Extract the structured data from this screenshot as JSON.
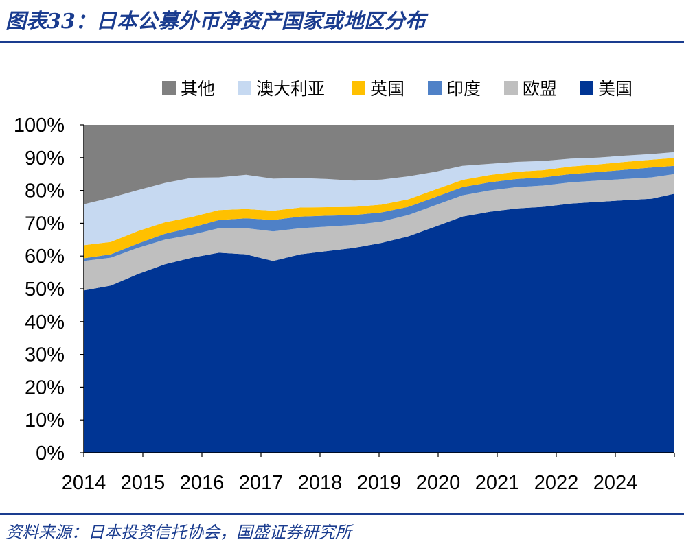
{
  "header": {
    "title": "图表33：日本公募外币净资产国家或地区分布"
  },
  "footer": {
    "source": "资料来源：日本投资信托协会，国盛证券研究所"
  },
  "chart_data": {
    "type": "area",
    "stacked": true,
    "title": "日本公募外币净资产国家或地区分布",
    "xlabel": "",
    "ylabel": "",
    "ylim": [
      0,
      100
    ],
    "y_unit": "%",
    "y_ticks": [
      "0%",
      "10%",
      "20%",
      "30%",
      "40%",
      "50%",
      "60%",
      "70%",
      "80%",
      "90%",
      "100%"
    ],
    "x_tick_labels": [
      "2014",
      "2015",
      "2016",
      "2017",
      "2018",
      "2019",
      "2020",
      "2021",
      "2022",
      "2024"
    ],
    "x_range": [
      2014.0,
      2024.917
    ],
    "legend_position": "top",
    "colors": {
      "美国": "#003594",
      "欧盟": "#bfbfbf",
      "印度": "#4f81c7",
      "英国": "#ffc000",
      "澳大利亚": "#c6d9f1",
      "其他": "#808080"
    },
    "x": [
      2014.0,
      2014.5,
      2015.0,
      2015.5,
      2016.0,
      2016.5,
      2017.0,
      2017.5,
      2018.0,
      2018.5,
      2019.0,
      2019.5,
      2020.0,
      2020.5,
      2021.0,
      2021.5,
      2022.0,
      2022.5,
      2023.0,
      2023.5,
      2024.0,
      2024.5,
      2024.917
    ],
    "series": [
      {
        "name": "美国",
        "values": [
          49.5,
          51.0,
          54.5,
          57.5,
          59.5,
          61.0,
          60.5,
          58.5,
          60.5,
          61.5,
          62.5,
          64.0,
          66.0,
          69.0,
          72.0,
          73.5,
          74.5,
          75.0,
          76.0,
          76.5,
          77.0,
          77.5,
          79.0
        ]
      },
      {
        "name": "欧盟",
        "values": [
          9.0,
          8.5,
          8.0,
          7.5,
          7.0,
          7.5,
          8.0,
          9.0,
          8.0,
          7.5,
          7.0,
          6.5,
          6.5,
          6.5,
          6.5,
          6.5,
          6.5,
          6.5,
          6.5,
          6.5,
          6.5,
          6.5,
          6.0
        ]
      },
      {
        "name": "印度",
        "values": [
          0.8,
          1.0,
          1.3,
          1.8,
          2.2,
          2.5,
          3.0,
          3.5,
          3.5,
          3.3,
          3.0,
          2.8,
          2.5,
          2.5,
          2.5,
          2.5,
          2.5,
          2.5,
          2.5,
          2.6,
          2.8,
          3.0,
          2.5
        ]
      },
      {
        "name": "英国",
        "values": [
          4.0,
          3.8,
          3.8,
          3.5,
          3.2,
          3.0,
          2.8,
          2.8,
          2.8,
          2.6,
          2.5,
          2.4,
          2.3,
          2.3,
          2.2,
          2.2,
          2.2,
          2.2,
          2.3,
          2.3,
          2.4,
          2.4,
          2.4
        ]
      },
      {
        "name": "澳大利亚",
        "values": [
          12.5,
          13.5,
          12.5,
          12.0,
          12.0,
          10.0,
          10.5,
          9.8,
          9.0,
          8.6,
          8.0,
          7.6,
          7.0,
          5.4,
          4.3,
          3.4,
          3.0,
          2.8,
          2.4,
          2.1,
          1.9,
          1.7,
          1.8
        ]
      },
      {
        "name": "其他",
        "values": [
          24.2,
          22.2,
          19.9,
          17.7,
          16.1,
          16.0,
          15.2,
          16.4,
          16.2,
          16.5,
          17.0,
          16.7,
          15.7,
          14.3,
          12.5,
          11.9,
          11.3,
          11.0,
          10.3,
          10.0,
          9.4,
          8.9,
          8.3
        ]
      }
    ]
  }
}
